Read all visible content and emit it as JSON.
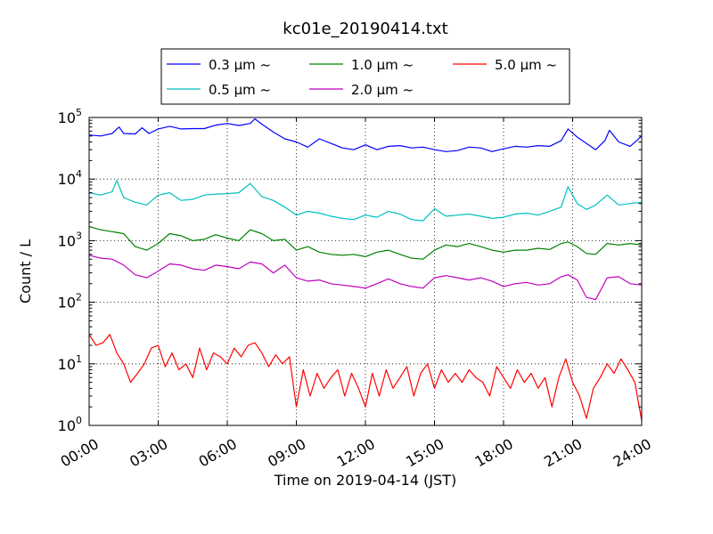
{
  "chart_data": {
    "type": "line",
    "title": "kc01e_20190414.txt",
    "xlabel": "Time on 2019-04-14 (JST)",
    "ylabel": "Count / L",
    "x_range_hours": [
      0,
      24
    ],
    "x_ticks": [
      "00:00",
      "03:00",
      "06:00",
      "09:00",
      "12:00",
      "15:00",
      "18:00",
      "21:00",
      "24:00"
    ],
    "y_scale": "log",
    "ylim": [
      1,
      100000
    ],
    "y_ticks": [
      {
        "base": "10",
        "exp": "0"
      },
      {
        "base": "10",
        "exp": "1"
      },
      {
        "base": "10",
        "exp": "2"
      },
      {
        "base": "10",
        "exp": "3"
      },
      {
        "base": "10",
        "exp": "4"
      },
      {
        "base": "10",
        "exp": "5"
      }
    ],
    "grid": true,
    "legend_placement": "top-center",
    "series": [
      {
        "name": "0.3 μm ~",
        "color": "#0000ff",
        "points": [
          [
            0.0,
            52000
          ],
          [
            0.5,
            50000
          ],
          [
            1.0,
            55000
          ],
          [
            1.3,
            70000
          ],
          [
            1.5,
            55000
          ],
          [
            2.0,
            54000
          ],
          [
            2.3,
            68000
          ],
          [
            2.6,
            55000
          ],
          [
            3.0,
            65000
          ],
          [
            3.5,
            72000
          ],
          [
            4.0,
            65000
          ],
          [
            4.5,
            66000
          ],
          [
            5.0,
            66000
          ],
          [
            5.5,
            75000
          ],
          [
            6.0,
            80000
          ],
          [
            6.5,
            74000
          ],
          [
            7.0,
            80000
          ],
          [
            7.2,
            95000
          ],
          [
            7.5,
            78000
          ],
          [
            8.0,
            58000
          ],
          [
            8.5,
            45000
          ],
          [
            9.0,
            40000
          ],
          [
            9.5,
            33000
          ],
          [
            10.0,
            45000
          ],
          [
            10.5,
            38000
          ],
          [
            11.0,
            32000
          ],
          [
            11.5,
            30000
          ],
          [
            12.0,
            36000
          ],
          [
            12.5,
            30000
          ],
          [
            13.0,
            34000
          ],
          [
            13.5,
            35000
          ],
          [
            14.0,
            32000
          ],
          [
            14.5,
            33000
          ],
          [
            15.0,
            30000
          ],
          [
            15.5,
            28000
          ],
          [
            16.0,
            29000
          ],
          [
            16.5,
            33000
          ],
          [
            17.0,
            32000
          ],
          [
            17.5,
            28000
          ],
          [
            18.0,
            31000
          ],
          [
            18.5,
            34000
          ],
          [
            19.0,
            33000
          ],
          [
            19.5,
            35000
          ],
          [
            20.0,
            34000
          ],
          [
            20.5,
            42000
          ],
          [
            20.8,
            65000
          ],
          [
            21.2,
            48000
          ],
          [
            21.6,
            38000
          ],
          [
            22.0,
            30000
          ],
          [
            22.4,
            42000
          ],
          [
            22.6,
            62000
          ],
          [
            23.0,
            40000
          ],
          [
            23.5,
            34000
          ],
          [
            24.0,
            50000
          ]
        ]
      },
      {
        "name": "0.5 μm ~",
        "color": "#00bfbf",
        "points": [
          [
            0.0,
            6000
          ],
          [
            0.5,
            5500
          ],
          [
            1.0,
            6200
          ],
          [
            1.2,
            9500
          ],
          [
            1.5,
            5000
          ],
          [
            2.0,
            4200
          ],
          [
            2.5,
            3800
          ],
          [
            3.0,
            5500
          ],
          [
            3.5,
            6000
          ],
          [
            4.0,
            4500
          ],
          [
            4.5,
            4700
          ],
          [
            5.0,
            5500
          ],
          [
            5.5,
            5700
          ],
          [
            6.0,
            5800
          ],
          [
            6.5,
            6000
          ],
          [
            7.0,
            8500
          ],
          [
            7.5,
            5200
          ],
          [
            8.0,
            4500
          ],
          [
            8.5,
            3500
          ],
          [
            9.0,
            2600
          ],
          [
            9.5,
            3000
          ],
          [
            10.0,
            2800
          ],
          [
            10.5,
            2500
          ],
          [
            11.0,
            2300
          ],
          [
            11.5,
            2200
          ],
          [
            12.0,
            2600
          ],
          [
            12.5,
            2400
          ],
          [
            13.0,
            3000
          ],
          [
            13.5,
            2700
          ],
          [
            14.0,
            2200
          ],
          [
            14.5,
            2100
          ],
          [
            15.0,
            3300
          ],
          [
            15.5,
            2500
          ],
          [
            16.0,
            2600
          ],
          [
            16.5,
            2700
          ],
          [
            17.0,
            2500
          ],
          [
            17.5,
            2300
          ],
          [
            18.0,
            2400
          ],
          [
            18.5,
            2700
          ],
          [
            19.0,
            2800
          ],
          [
            19.5,
            2600
          ],
          [
            20.0,
            3000
          ],
          [
            20.5,
            3500
          ],
          [
            20.8,
            7500
          ],
          [
            21.2,
            4000
          ],
          [
            21.6,
            3200
          ],
          [
            22.0,
            3800
          ],
          [
            22.5,
            5500
          ],
          [
            23.0,
            3800
          ],
          [
            23.5,
            4000
          ],
          [
            24.0,
            4200
          ]
        ]
      },
      {
        "name": "1.0 μm ~",
        "color": "#008000",
        "points": [
          [
            0.0,
            1700
          ],
          [
            0.5,
            1500
          ],
          [
            1.0,
            1400
          ],
          [
            1.5,
            1300
          ],
          [
            2.0,
            800
          ],
          [
            2.5,
            700
          ],
          [
            3.0,
            900
          ],
          [
            3.5,
            1300
          ],
          [
            4.0,
            1200
          ],
          [
            4.5,
            1000
          ],
          [
            5.0,
            1050
          ],
          [
            5.5,
            1250
          ],
          [
            6.0,
            1100
          ],
          [
            6.5,
            1000
          ],
          [
            7.0,
            1500
          ],
          [
            7.5,
            1300
          ],
          [
            8.0,
            1000
          ],
          [
            8.5,
            1050
          ],
          [
            9.0,
            700
          ],
          [
            9.5,
            800
          ],
          [
            10.0,
            650
          ],
          [
            10.5,
            600
          ],
          [
            11.0,
            580
          ],
          [
            11.5,
            600
          ],
          [
            12.0,
            550
          ],
          [
            12.5,
            650
          ],
          [
            13.0,
            700
          ],
          [
            13.5,
            600
          ],
          [
            14.0,
            520
          ],
          [
            14.5,
            500
          ],
          [
            15.0,
            700
          ],
          [
            15.5,
            850
          ],
          [
            16.0,
            800
          ],
          [
            16.5,
            900
          ],
          [
            17.0,
            800
          ],
          [
            17.5,
            700
          ],
          [
            18.0,
            650
          ],
          [
            18.5,
            700
          ],
          [
            19.0,
            700
          ],
          [
            19.5,
            750
          ],
          [
            20.0,
            720
          ],
          [
            20.5,
            900
          ],
          [
            20.8,
            950
          ],
          [
            21.2,
            800
          ],
          [
            21.6,
            620
          ],
          [
            22.0,
            600
          ],
          [
            22.5,
            900
          ],
          [
            23.0,
            850
          ],
          [
            23.5,
            900
          ],
          [
            24.0,
            850
          ]
        ]
      },
      {
        "name": "2.0 μm ~",
        "color": "#bf00bf",
        "points": [
          [
            0.0,
            580
          ],
          [
            0.5,
            520
          ],
          [
            1.0,
            500
          ],
          [
            1.5,
            400
          ],
          [
            2.0,
            280
          ],
          [
            2.5,
            250
          ],
          [
            3.0,
            320
          ],
          [
            3.5,
            420
          ],
          [
            4.0,
            400
          ],
          [
            4.5,
            350
          ],
          [
            5.0,
            330
          ],
          [
            5.5,
            400
          ],
          [
            6.0,
            380
          ],
          [
            6.5,
            350
          ],
          [
            7.0,
            450
          ],
          [
            7.5,
            420
          ],
          [
            8.0,
            300
          ],
          [
            8.5,
            400
          ],
          [
            9.0,
            250
          ],
          [
            9.5,
            220
          ],
          [
            10.0,
            230
          ],
          [
            10.5,
            200
          ],
          [
            11.0,
            190
          ],
          [
            11.5,
            180
          ],
          [
            12.0,
            170
          ],
          [
            12.5,
            200
          ],
          [
            13.0,
            240
          ],
          [
            13.5,
            200
          ],
          [
            14.0,
            180
          ],
          [
            14.5,
            170
          ],
          [
            15.0,
            250
          ],
          [
            15.5,
            270
          ],
          [
            16.0,
            250
          ],
          [
            16.5,
            230
          ],
          [
            17.0,
            250
          ],
          [
            17.5,
            220
          ],
          [
            18.0,
            180
          ],
          [
            18.5,
            200
          ],
          [
            19.0,
            210
          ],
          [
            19.5,
            190
          ],
          [
            20.0,
            200
          ],
          [
            20.5,
            260
          ],
          [
            20.8,
            280
          ],
          [
            21.2,
            230
          ],
          [
            21.6,
            120
          ],
          [
            22.0,
            110
          ],
          [
            22.5,
            250
          ],
          [
            23.0,
            260
          ],
          [
            23.5,
            200
          ],
          [
            24.0,
            190
          ]
        ]
      },
      {
        "name": "5.0 μm ~",
        "color": "#ff0000",
        "points": [
          [
            0.0,
            30
          ],
          [
            0.3,
            20
          ],
          [
            0.6,
            22
          ],
          [
            0.9,
            30
          ],
          [
            1.2,
            15
          ],
          [
            1.5,
            10
          ],
          [
            1.8,
            5
          ],
          [
            2.1,
            7
          ],
          [
            2.4,
            10
          ],
          [
            2.7,
            18
          ],
          [
            3.0,
            20
          ],
          [
            3.3,
            9
          ],
          [
            3.6,
            15
          ],
          [
            3.9,
            8
          ],
          [
            4.2,
            10
          ],
          [
            4.5,
            6
          ],
          [
            4.8,
            18
          ],
          [
            5.1,
            8
          ],
          [
            5.4,
            15
          ],
          [
            5.7,
            13
          ],
          [
            6.0,
            10
          ],
          [
            6.3,
            18
          ],
          [
            6.6,
            13
          ],
          [
            6.9,
            20
          ],
          [
            7.2,
            22
          ],
          [
            7.5,
            15
          ],
          [
            7.8,
            9
          ],
          [
            8.1,
            14
          ],
          [
            8.4,
            10
          ],
          [
            8.7,
            13
          ],
          [
            9.0,
            2
          ],
          [
            9.3,
            8
          ],
          [
            9.6,
            3
          ],
          [
            9.9,
            7
          ],
          [
            10.2,
            4
          ],
          [
            10.5,
            6
          ],
          [
            10.8,
            8
          ],
          [
            11.1,
            3
          ],
          [
            11.4,
            7
          ],
          [
            11.7,
            4
          ],
          [
            12.0,
            2
          ],
          [
            12.3,
            7
          ],
          [
            12.6,
            3
          ],
          [
            12.9,
            8
          ],
          [
            13.2,
            4
          ],
          [
            13.5,
            6
          ],
          [
            13.8,
            9
          ],
          [
            14.1,
            3
          ],
          [
            14.4,
            7
          ],
          [
            14.7,
            10
          ],
          [
            15.0,
            4
          ],
          [
            15.3,
            8
          ],
          [
            15.6,
            5
          ],
          [
            15.9,
            7
          ],
          [
            16.2,
            5
          ],
          [
            16.5,
            8
          ],
          [
            16.8,
            6
          ],
          [
            17.1,
            5
          ],
          [
            17.4,
            3
          ],
          [
            17.7,
            9
          ],
          [
            18.0,
            6
          ],
          [
            18.3,
            4
          ],
          [
            18.6,
            8
          ],
          [
            18.9,
            5
          ],
          [
            19.2,
            7
          ],
          [
            19.5,
            4
          ],
          [
            19.8,
            6
          ],
          [
            20.1,
            2
          ],
          [
            20.4,
            6
          ],
          [
            20.7,
            12
          ],
          [
            21.0,
            5
          ],
          [
            21.3,
            3
          ],
          [
            21.6,
            1.3
          ],
          [
            21.9,
            4
          ],
          [
            22.2,
            6
          ],
          [
            22.5,
            10
          ],
          [
            22.8,
            7
          ],
          [
            23.1,
            12
          ],
          [
            23.4,
            8
          ],
          [
            23.7,
            5
          ],
          [
            24.0,
            1.2
          ]
        ]
      }
    ]
  }
}
